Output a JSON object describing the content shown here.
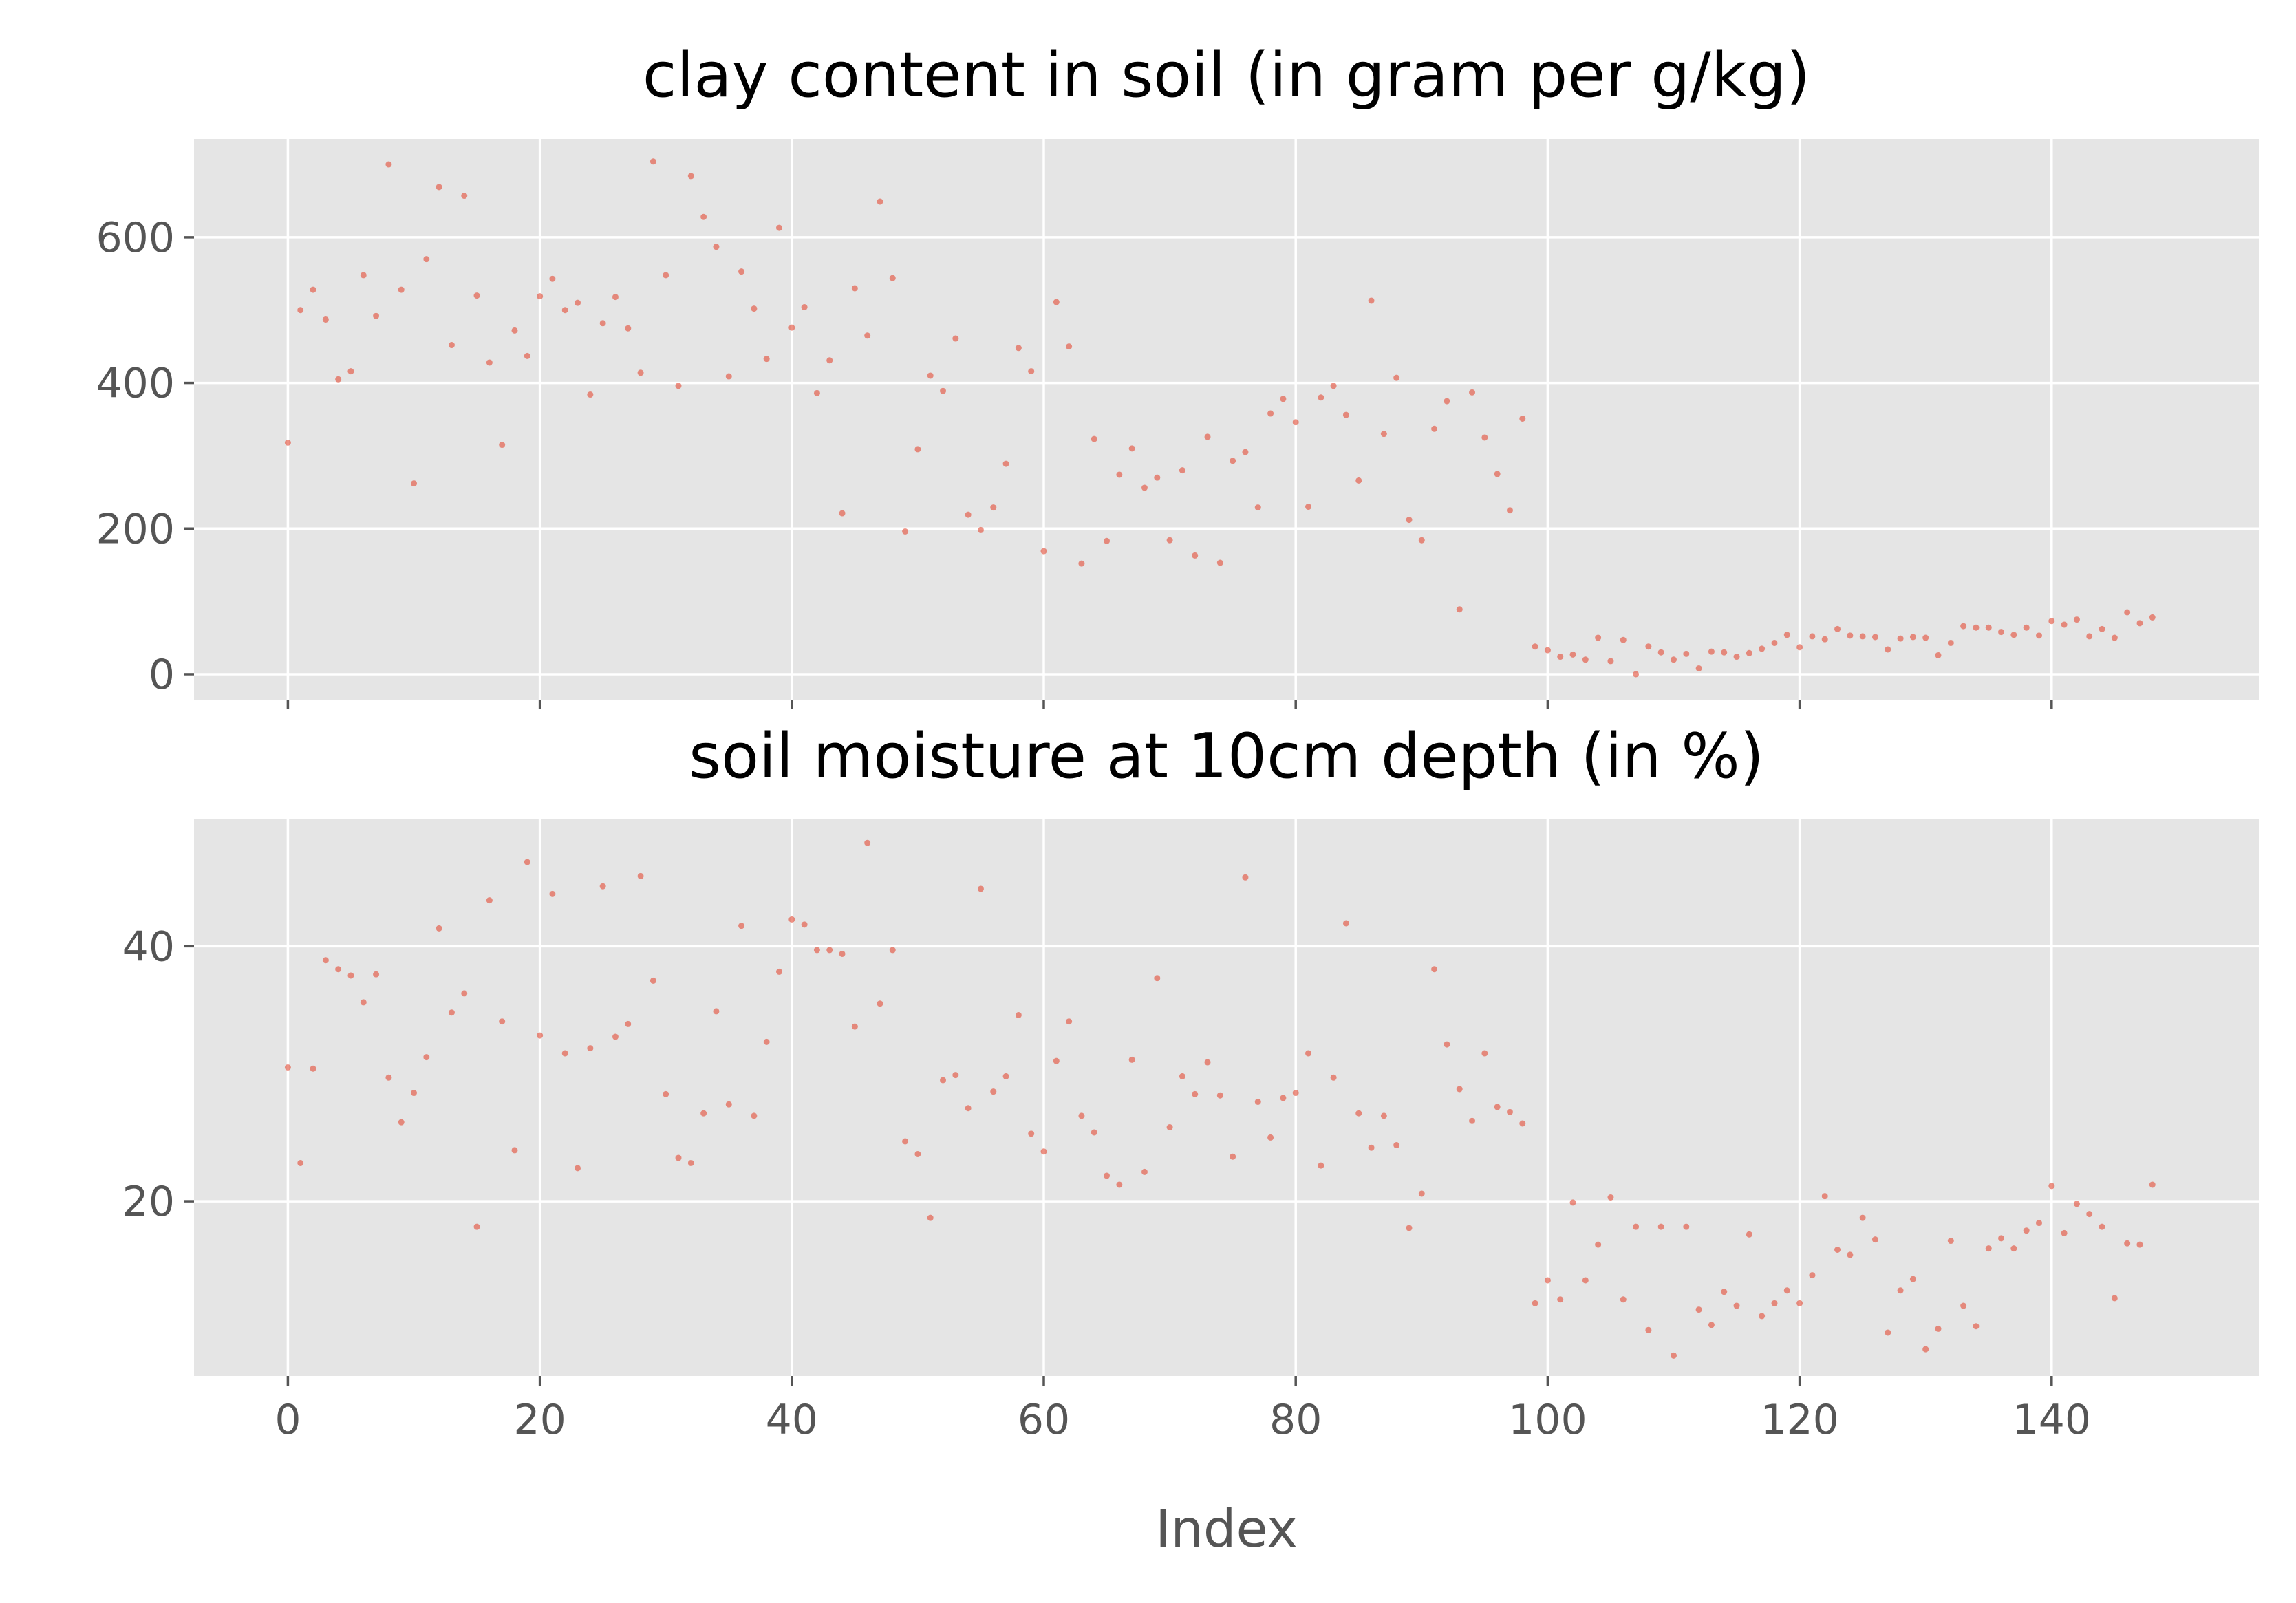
{
  "chart_data": [
    {
      "type": "scatter",
      "title": "clay content in soil (in gram per g/kg)",
      "xlabel": "",
      "ylabel": "",
      "xlim": [
        -7.45,
        156.45
      ],
      "ylim": [
        -35,
        735
      ],
      "xticks": [
        0,
        20,
        40,
        60,
        80,
        100,
        120,
        140
      ],
      "yticks": [
        0,
        200,
        400,
        600
      ],
      "ytick_labels": [
        "0",
        "200",
        "400",
        "600"
      ],
      "grid": true,
      "point_color": "#E24A33",
      "x_start": 0,
      "values": [
        318,
        500,
        528,
        487,
        405,
        416,
        548,
        492,
        700,
        528,
        262,
        570,
        669,
        452,
        657,
        520,
        428,
        315,
        472,
        437,
        519,
        543,
        500,
        510,
        384,
        482,
        518,
        475,
        414,
        704,
        548,
        396,
        684,
        628,
        587,
        409,
        553,
        502,
        433,
        613,
        476,
        504,
        386,
        431,
        221,
        530,
        465,
        649,
        544,
        196,
        309,
        410,
        389,
        461,
        219,
        198,
        229,
        289,
        448,
        416,
        169,
        511,
        450,
        152,
        323,
        183,
        274,
        310,
        256,
        270,
        184,
        280,
        163,
        326,
        153,
        293,
        305,
        229,
        358,
        378,
        346,
        230,
        380,
        396,
        356,
        266,
        513,
        330,
        407,
        212,
        184,
        337,
        375,
        89,
        387,
        325,
        275,
        225,
        351,
        38,
        33,
        24,
        27,
        20,
        50,
        18,
        47,
        0,
        38,
        30,
        20,
        28,
        8,
        31,
        30,
        24,
        29,
        35,
        43,
        54,
        37,
        52,
        48,
        62,
        53,
        52,
        51,
        34,
        49,
        51,
        50,
        26,
        43,
        66,
        64,
        64,
        58,
        54,
        64,
        53,
        73,
        68,
        75,
        52,
        62,
        50,
        85,
        70,
        78
      ]
    },
    {
      "type": "scatter",
      "title": "soil moisture at 10cm depth (in %)",
      "xlabel": "Index",
      "ylabel": "",
      "xlim": [
        -7.45,
        156.45
      ],
      "ylim": [
        6.3,
        50.0
      ],
      "xticks": [
        0,
        20,
        40,
        60,
        80,
        100,
        120,
        140
      ],
      "xtick_labels": [
        "0",
        "20",
        "40",
        "60",
        "80",
        "100",
        "120",
        "140"
      ],
      "yticks": [
        20,
        40
      ],
      "ytick_labels": [
        "20",
        "40"
      ],
      "grid": true,
      "point_color": "#E24A33",
      "x_start": 0,
      "values": [
        30.5,
        23.0,
        30.4,
        38.9,
        38.2,
        37.7,
        35.6,
        37.8,
        29.7,
        26.2,
        28.5,
        31.3,
        41.4,
        34.8,
        36.3,
        18.0,
        43.6,
        34.1,
        24.0,
        46.6,
        33.0,
        44.1,
        31.6,
        22.6,
        32.0,
        44.7,
        32.9,
        33.9,
        45.5,
        37.3,
        28.4,
        23.4,
        23.0,
        26.9,
        34.9,
        27.6,
        41.6,
        26.7,
        32.5,
        38.0,
        42.1,
        41.7,
        39.7,
        39.7,
        39.4,
        33.7,
        48.1,
        35.5,
        39.7,
        24.7,
        23.7,
        18.7,
        29.5,
        29.9,
        27.3,
        44.5,
        28.6,
        29.8,
        34.6,
        25.3,
        23.9,
        31.0,
        34.1,
        26.7,
        25.4,
        22.0,
        21.3,
        31.1,
        22.3,
        37.5,
        25.8,
        29.8,
        28.4,
        30.9,
        28.3,
        23.5,
        45.4,
        27.8,
        25.0,
        28.1,
        28.5,
        31.6,
        22.8,
        29.7,
        41.8,
        26.9,
        24.2,
        26.7,
        24.4,
        17.9,
        20.6,
        38.2,
        32.3,
        28.8,
        26.3,
        31.6,
        27.4,
        27.0,
        26.1,
        12.0,
        13.8,
        12.3,
        19.9,
        13.8,
        16.6,
        20.3,
        12.3,
        18.0,
        9.9,
        18.0,
        7.9,
        18.0,
        11.5,
        10.3,
        12.9,
        11.8,
        17.4,
        11.0,
        12.0,
        13.0,
        12.0,
        14.2,
        20.4,
        16.2,
        15.8,
        18.7,
        17.0,
        9.7,
        13.0,
        13.9,
        8.4,
        10.0,
        16.9,
        11.8,
        10.2,
        16.3,
        17.1,
        16.3,
        17.7,
        18.3,
        21.2,
        17.5,
        19.8,
        19.0,
        18.0,
        12.4,
        16.7,
        16.6,
        21.3
      ]
    }
  ]
}
